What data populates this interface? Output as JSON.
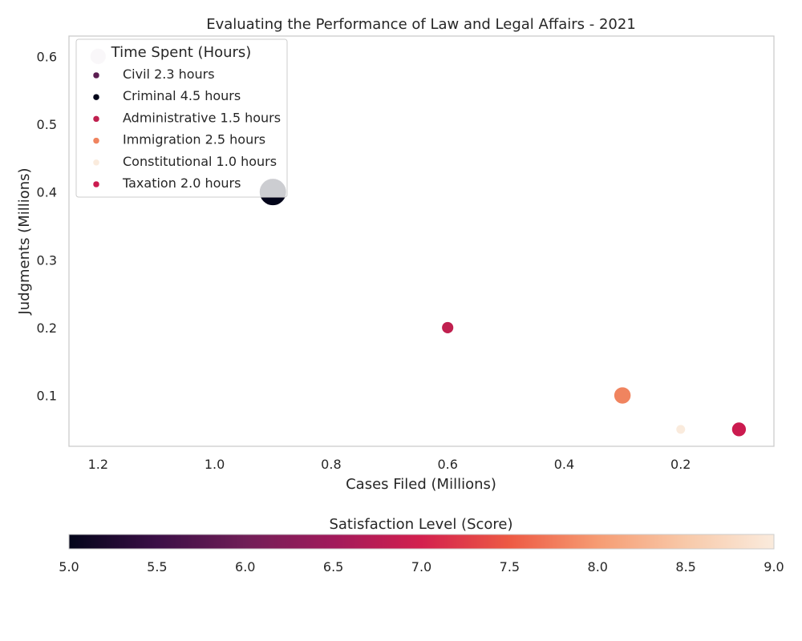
{
  "chart_data": {
    "type": "scatter",
    "title": "Evaluating the Performance of Law and Legal Affairs - 2021",
    "xlabel": "Cases Filed (Millions)",
    "ylabel": "Judgments (Millions)",
    "x_inverted": true,
    "xlim": [
      1.25,
      0.04
    ],
    "ylim": [
      0.025,
      0.63
    ],
    "xticks": [
      1.2,
      1.0,
      0.8,
      0.6,
      0.4,
      0.2
    ],
    "yticks": [
      0.1,
      0.2,
      0.3,
      0.4,
      0.5,
      0.6
    ],
    "size_encoding": "Time Spent (Hours)",
    "color_encoding": "Satisfaction Level (Score)",
    "legend": {
      "title": "Time Spent (Hours)",
      "placement": "top-left",
      "entries": [
        {
          "label": "Civil 2.3 hours",
          "color": "#5b1e51"
        },
        {
          "label": "Criminal 4.5 hours",
          "color": "#03051a"
        },
        {
          "label": "Administrative 1.5 hours",
          "color": "#c0204f"
        },
        {
          "label": "Immigration 2.5 hours",
          "color": "#f0845f"
        },
        {
          "label": "Constitutional 1.0 hours",
          "color": "#faebdd"
        },
        {
          "label": "Taxation 2.0 hours",
          "color": "#cb1b4f"
        }
      ]
    },
    "points": [
      {
        "category": "Civil",
        "x": 1.2,
        "y": 0.6,
        "hours": 2.3,
        "color": "#e0d4df"
      },
      {
        "category": "Criminal",
        "x": 0.9,
        "y": 0.4,
        "hours": 4.5,
        "color": "#03051a"
      },
      {
        "category": "Administrative",
        "x": 0.6,
        "y": 0.2,
        "hours": 1.5,
        "color": "#c0204f"
      },
      {
        "category": "Immigration",
        "x": 0.3,
        "y": 0.1,
        "hours": 2.5,
        "color": "#f0845f"
      },
      {
        "category": "Constitutional",
        "x": 0.2,
        "y": 0.05,
        "hours": 1.0,
        "color": "#faebdd"
      },
      {
        "category": "Taxation",
        "x": 0.1,
        "y": 0.05,
        "hours": 2.0,
        "color": "#cb1b4f"
      }
    ],
    "colorbar": {
      "label": "Satisfaction Level (Score)",
      "range": [
        5.0,
        9.0
      ],
      "ticks": [
        "5.0",
        "5.5",
        "6.0",
        "6.5",
        "7.0",
        "7.5",
        "8.0",
        "8.5",
        "9.0"
      ],
      "stops": [
        "#03051a",
        "#3b0f46",
        "#701f57",
        "#a11a5b",
        "#d3204e",
        "#ed5a44",
        "#f69c73",
        "#f8c9a9",
        "#faebdd"
      ]
    }
  }
}
